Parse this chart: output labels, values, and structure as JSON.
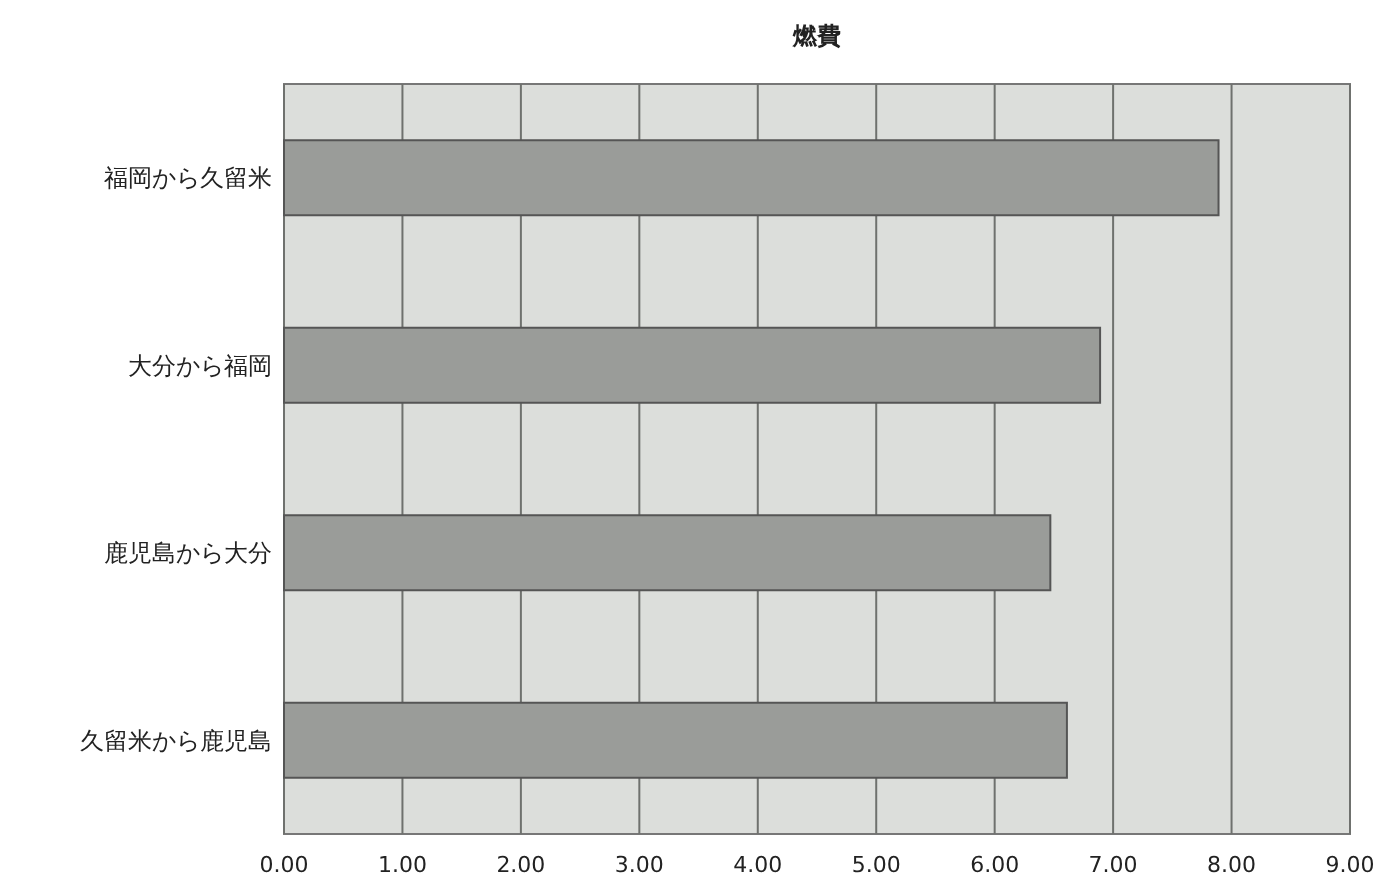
{
  "chart_data": {
    "type": "bar",
    "orientation": "horizontal",
    "title": "燃費",
    "categories": [
      "福岡から久留米",
      "大分から福岡",
      "鹿児島から大分",
      "久留米から鹿児島"
    ],
    "values": [
      7.89,
      6.89,
      6.47,
      6.61
    ],
    "color": "#9a9c99",
    "xlim": [
      0,
      9
    ],
    "xticks": [
      {
        "value": 0,
        "label": "0.00"
      },
      {
        "value": 1,
        "label": "1.00"
      },
      {
        "value": 2,
        "label": "2.00"
      },
      {
        "value": 3,
        "label": "3.00"
      },
      {
        "value": 4,
        "label": "4.00"
      },
      {
        "value": 5,
        "label": "5.00"
      },
      {
        "value": 6,
        "label": "6.00"
      },
      {
        "value": 7,
        "label": "7.00"
      },
      {
        "value": 8,
        "label": "8.00"
      },
      {
        "value": 9,
        "label": "9.00"
      }
    ],
    "grid": "x"
  }
}
